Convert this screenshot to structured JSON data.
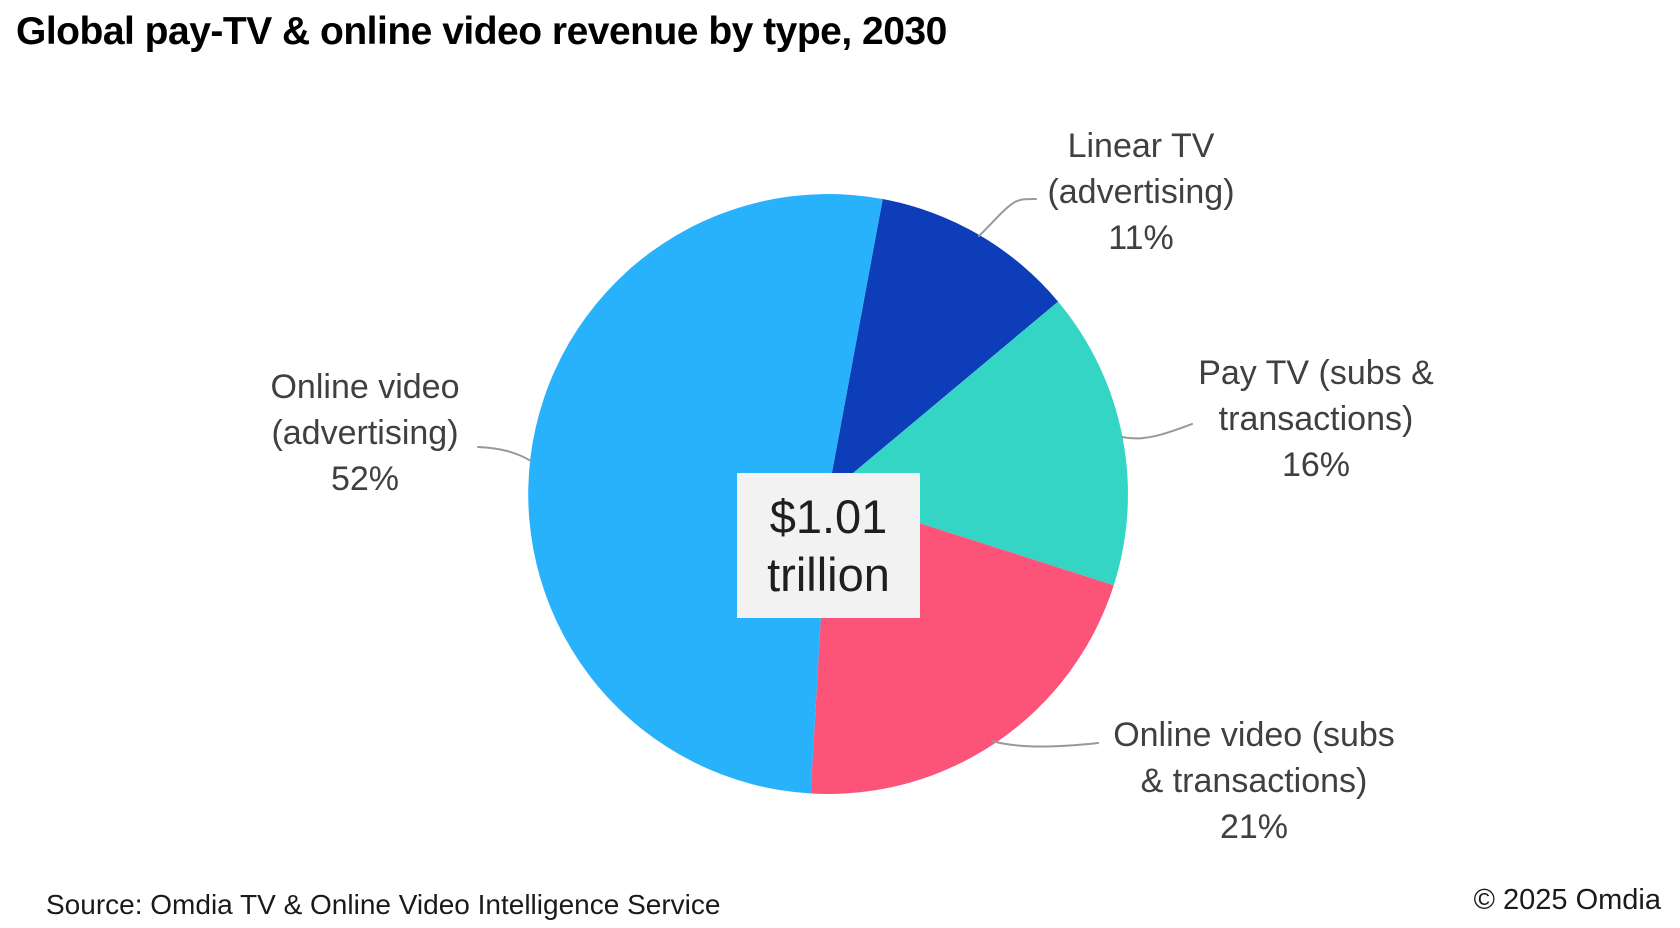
{
  "title": "Global pay-TV & online video revenue by type, 2030",
  "center_label": {
    "value": "$1.01",
    "unit": "trillion"
  },
  "footer": {
    "source": "Source: Omdia TV & Online Video Intelligence Service",
    "copyright": "© 2025 Omdia"
  },
  "colors": {
    "linear_tv_advertising": "#0D3DB8",
    "pay_tv_subs_transactions": "#35D5C5",
    "online_video_subs_transactions": "#FC5478",
    "online_video_advertising": "#29B2FC",
    "label_text": "#404040",
    "leader_line": "#999999",
    "center_box_bg": "#F2F2F2",
    "title_text": "#000000"
  },
  "chart_data": {
    "type": "pie",
    "title": "Global pay-TV & online video revenue by type, 2030",
    "total_label": "$1.01 trillion",
    "direction": "clockwise",
    "start_angle_deg": 10.5,
    "legend_position": "outside-callouts",
    "slices": [
      {
        "label": "Linear TV (advertising)",
        "value_pct": 11,
        "color": "#0D3DB8"
      },
      {
        "label": "Pay TV (subs & transactions)",
        "value_pct": 16,
        "color": "#35D5C5"
      },
      {
        "label": "Online video (subs & transactions)",
        "value_pct": 21,
        "color": "#FC5478"
      },
      {
        "label": "Online video (advertising)",
        "value_pct": 52,
        "color": "#29B2FC"
      }
    ],
    "callouts": [
      {
        "lines": [
          "Linear TV",
          "(advertising)",
          "11%"
        ]
      },
      {
        "lines": [
          "Pay TV (subs &",
          "transactions)",
          "16%"
        ]
      },
      {
        "lines": [
          "Online video (subs",
          "& transactions)",
          "21%"
        ]
      },
      {
        "lines": [
          "Online video",
          "(advertising)",
          "52%"
        ]
      }
    ]
  }
}
